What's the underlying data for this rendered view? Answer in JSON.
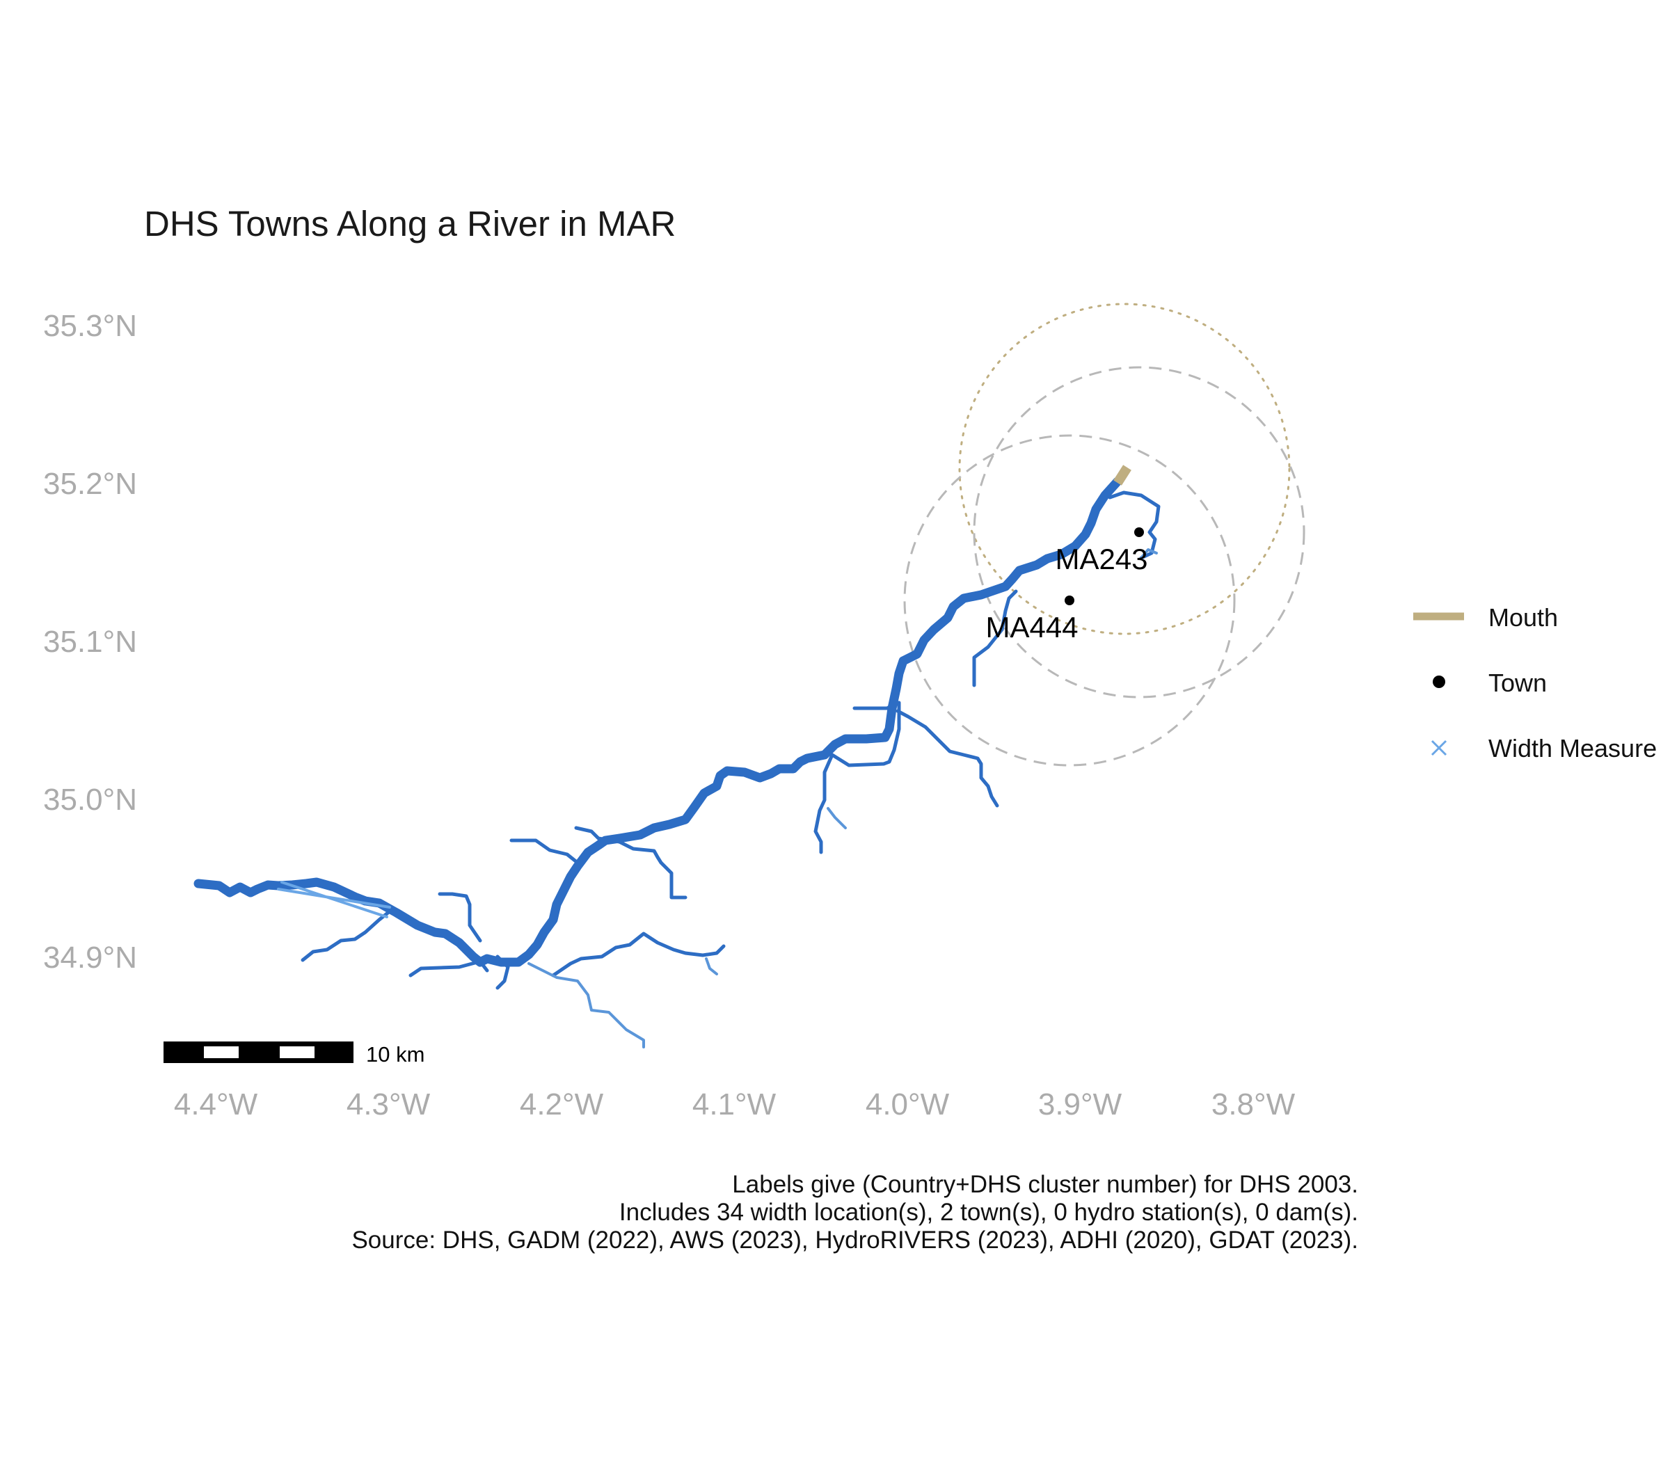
{
  "title": "DHS Towns Along a River in MAR",
  "map": {
    "extent": {
      "lon_min": -4.45,
      "lon_max": -3.75,
      "lat_min": 34.85,
      "lat_max": 35.35
    },
    "lat_ticks": [
      {
        "value": 35.3,
        "label": "35.3°N"
      },
      {
        "value": 35.2,
        "label": "35.2°N"
      },
      {
        "value": 35.1,
        "label": "35.1°N"
      },
      {
        "value": 35.0,
        "label": "35.0°N"
      },
      {
        "value": 34.9,
        "label": "34.9°N"
      }
    ],
    "lon_ticks": [
      {
        "value": -4.4,
        "label": "4.4°W"
      },
      {
        "value": -4.3,
        "label": "4.3°W"
      },
      {
        "value": -4.2,
        "label": "4.2°W"
      },
      {
        "value": -4.1,
        "label": "4.1°W"
      },
      {
        "value": -4.0,
        "label": "4.0°W"
      },
      {
        "value": -3.9,
        "label": "3.9°W"
      },
      {
        "value": -3.8,
        "label": "3.8°W"
      }
    ],
    "towns": [
      {
        "id": "MA243",
        "label": "MA243",
        "lon": -3.865,
        "lat": 35.169
      },
      {
        "id": "MA444",
        "label": "MA444",
        "lon": -3.906,
        "lat": 35.125
      }
    ],
    "colors": {
      "river": "#2d6dc4",
      "river_light": "#5b96d9",
      "width_measure": "#6aa6e6",
      "mouth": "#bfae80",
      "buffer": "#b8b8b8",
      "town": "#000000"
    },
    "scale_bar": {
      "label": "10 km"
    }
  },
  "legend": {
    "items": [
      {
        "key": "mouth",
        "label": "Mouth",
        "symbol": "line",
        "color": "#bfae80"
      },
      {
        "key": "town",
        "label": "Town",
        "symbol": "dot",
        "color": "#000000"
      },
      {
        "key": "width",
        "label": "Width Measure",
        "symbol": "cross",
        "color": "#6aa6e6"
      }
    ]
  },
  "caption": {
    "lines": [
      "Labels give (Country+DHS cluster number) for DHS 2003.",
      "Includes 34 width location(s), 2 town(s), 0 hydro station(s), 0 dam(s).",
      "Source: DHS, GADM (2022), AWS (2023), HydroRIVERS (2023), ADHI (2020), GDAT (2023)."
    ]
  }
}
